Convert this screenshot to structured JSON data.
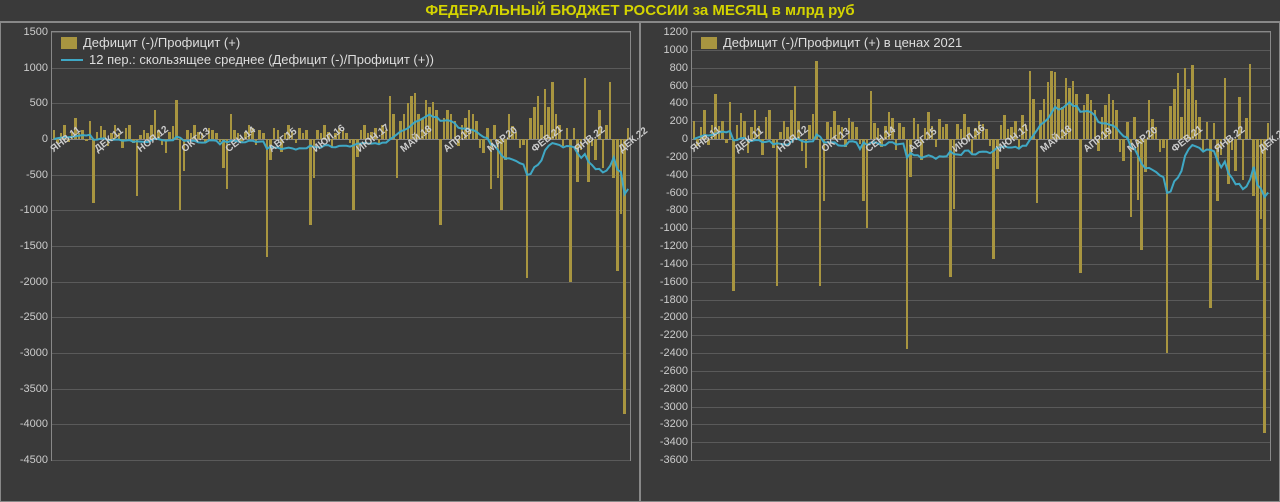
{
  "title": "ФЕДЕРАЛЬНЫЙ БЮДЖЕТ РОССИИ за МЕСЯЦ в млрд руб",
  "colors": {
    "background": "#3a3a3a",
    "title": "#d4d400",
    "axis_text": "#cccccc",
    "grid": "#5a5a5a",
    "border": "#888888",
    "bar": "#a89540",
    "line": "#3fa8c5"
  },
  "chart_left": {
    "legend_bar": "Дефицит (-)/Профицит (+)",
    "legend_line": "12 пер.: скользящее среднее (Дефицит (-)/Профицит (+))",
    "ylim": [
      -4500,
      1500
    ],
    "ytick_step": 500,
    "x_labels": [
      "ЯНВ.11",
      "ДЕК.11",
      "НОЯ.12",
      "ОКТ.13",
      "СЕН.14",
      "АВГ.15",
      "ИЮЛ.16",
      "ИЮН.17",
      "МАЙ.18",
      "АПР.19",
      "МАР.20",
      "ФЕВ.21",
      "ЯНВ.22",
      "ДЕК.22"
    ],
    "bars": [
      120,
      -50,
      80,
      200,
      -40,
      100,
      300,
      90,
      120,
      -30,
      250,
      -900,
      100,
      180,
      120,
      -100,
      80,
      200,
      90,
      -120,
      150,
      200,
      -60,
      -800,
      50,
      120,
      80,
      200,
      400,
      120,
      -80,
      -200,
      100,
      180,
      550,
      -1000,
      -450,
      120,
      80,
      200,
      100,
      90,
      -60,
      150,
      120,
      80,
      -40,
      -400,
      -700,
      350,
      120,
      80,
      -60,
      100,
      200,
      150,
      -80,
      120,
      90,
      -1650,
      -300,
      160,
      120,
      -180,
      80,
      200,
      100,
      -60,
      150,
      90,
      120,
      -1200,
      -550,
      120,
      80,
      200,
      100,
      -130,
      90,
      150,
      120,
      80,
      -60,
      -1000,
      -250,
      120,
      200,
      80,
      100,
      150,
      -80,
      200,
      120,
      600,
      350,
      -550,
      250,
      350,
      500,
      600,
      650,
      350,
      280,
      550,
      450,
      520,
      400,
      -1200,
      300,
      400,
      350,
      250,
      -100,
      200,
      300,
      400,
      350,
      250,
      -120,
      -200,
      150,
      -700,
      200,
      -550,
      -1000,
      -300,
      350,
      180,
      100,
      -120,
      -80,
      -1950,
      300,
      450,
      600,
      200,
      700,
      450,
      800,
      350,
      200,
      -100,
      150,
      -2000,
      150,
      -600,
      -150,
      850,
      -600,
      -100,
      -300,
      400,
      -400,
      200,
      800,
      -550,
      -1850,
      -1050,
      -3850,
      150
    ],
    "line": [
      0,
      10,
      20,
      30,
      25,
      30,
      40,
      48,
      55,
      50,
      60,
      -10,
      -8,
      5,
      8,
      -15,
      -15,
      -8,
      -8,
      -24,
      -21,
      -15,
      -40,
      -32,
      -36,
      -41,
      -44,
      -20,
      5,
      -2,
      -16,
      -23,
      -19,
      -17,
      33,
      17,
      -25,
      -25,
      -25,
      -25,
      -48,
      -50,
      -49,
      -19,
      -17,
      -25,
      -75,
      -25,
      -46,
      -27,
      -24,
      -33,
      -47,
      -46,
      -24,
      -24,
      -41,
      -37,
      -34,
      -138,
      -105,
      -121,
      -121,
      -142,
      -131,
      -122,
      -131,
      -148,
      -129,
      -131,
      -129,
      -92,
      -113,
      -116,
      -119,
      -88,
      -86,
      -114,
      -115,
      -97,
      -94,
      -95,
      -106,
      -89,
      -64,
      -64,
      -54,
      -64,
      -64,
      -58,
      -72,
      -50,
      -50,
      -7,
      28,
      66,
      107,
      126,
      151,
      194,
      240,
      256,
      286,
      315,
      343,
      308,
      308,
      254,
      258,
      262,
      250,
      221,
      158,
      146,
      147,
      134,
      126,
      103,
      60,
      25,
      13,
      -79,
      -91,
      -158,
      -233,
      -274,
      -270,
      -289,
      -309,
      -340,
      -357,
      -503,
      -491,
      -395,
      -362,
      -299,
      -157,
      -94,
      -57,
      -70,
      -84,
      -118,
      -98,
      -102,
      -115,
      -203,
      -265,
      -211,
      -320,
      -365,
      -423,
      -419,
      -469,
      -443,
      -377,
      -260,
      -428,
      -465,
      -773,
      -700
    ]
  },
  "chart_right": {
    "legend_bar": "Дефицит (-)/Профицит (+) в ценах 2021",
    "ylim": [
      -3600,
      1200
    ],
    "ytick_step": 200,
    "x_labels": [
      "ЯНВ.11",
      "ДЕК.11",
      "НОЯ.12",
      "ОКТ.13",
      "СЕН.14",
      "АВГ.15",
      "ИЮЛ.16",
      "ИЮН.17",
      "МАЙ.18",
      "АПР.19",
      "МАР.20",
      "ФЕВ.21",
      "ЯНВ.22",
      "ДЕК.22"
    ],
    "bars": [
      200,
      -80,
      130,
      330,
      -70,
      160,
      500,
      150,
      200,
      -50,
      420,
      -1700,
      160,
      290,
      200,
      -160,
      130,
      330,
      150,
      -180,
      250,
      330,
      -100,
      -1650,
      80,
      200,
      130,
      330,
      600,
      200,
      -130,
      -320,
      160,
      280,
      880,
      -1650,
      -700,
      190,
      130,
      310,
      160,
      140,
      -90,
      230,
      190,
      130,
      -60,
      -700,
      -1000,
      540,
      180,
      120,
      -90,
      150,
      300,
      230,
      -120,
      180,
      140,
      -2350,
      -430,
      230,
      170,
      -240,
      120,
      300,
      150,
      -90,
      220,
      130,
      170,
      -1550,
      -780,
      170,
      110,
      280,
      140,
      -170,
      120,
      200,
      170,
      110,
      -80,
      -1350,
      -340,
      160,
      270,
      110,
      140,
      200,
      -100,
      270,
      160,
      760,
      450,
      -720,
      320,
      450,
      640,
      760,
      750,
      450,
      360,
      680,
      570,
      650,
      500,
      -1500,
      380,
      500,
      440,
      320,
      -130,
      250,
      380,
      500,
      440,
      320,
      -150,
      -250,
      190,
      -880,
      250,
      -680,
      -1250,
      -370,
      440,
      220,
      130,
      -150,
      -100,
      -2400,
      370,
      560,
      740,
      250,
      800,
      560,
      830,
      440,
      250,
      -130,
      190,
      -1900,
      180,
      -700,
      -180,
      680,
      -500,
      -120,
      -360,
      470,
      -460,
      230,
      840,
      -640,
      -1580,
      -900,
      -3300,
      180
    ],
    "line": [
      0,
      15,
      30,
      45,
      38,
      45,
      60,
      72,
      82,
      75,
      90,
      -15,
      -12,
      8,
      12,
      -22,
      -22,
      -12,
      -12,
      -36,
      -32,
      -22,
      -60,
      -48,
      -54,
      -62,
      -66,
      -30,
      8,
      -3,
      -24,
      -35,
      -28,
      -26,
      50,
      26,
      -38,
      -38,
      -38,
      -38,
      -72,
      -75,
      -74,
      -28,
      -26,
      -38,
      -112,
      -38,
      -69,
      -41,
      -36,
      -50,
      -71,
      -69,
      -36,
      -36,
      -62,
      -56,
      -51,
      -207,
      -158,
      -182,
      -182,
      -213,
      -197,
      -183,
      -197,
      -222,
      -194,
      -197,
      -194,
      -138,
      -170,
      -174,
      -179,
      -132,
      -129,
      -171,
      -173,
      -146,
      -141,
      -143,
      -159,
      -134,
      -96,
      -96,
      -81,
      -96,
      -96,
      -87,
      -108,
      -75,
      -75,
      -11,
      42,
      99,
      161,
      189,
      227,
      291,
      360,
      330,
      343,
      378,
      411,
      370,
      370,
      305,
      310,
      314,
      300,
      265,
      190,
      175,
      176,
      161,
      151,
      124,
      72,
      30,
      16,
      -95,
      -109,
      -190,
      -280,
      -329,
      -324,
      -347,
      -371,
      -408,
      -428,
      -604,
      -589,
      -474,
      -434,
      -359,
      -188,
      -113,
      -68,
      -84,
      -101,
      -142,
      -118,
      -122,
      -138,
      -244,
      -318,
      -253,
      -384,
      -438,
      -508,
      -503,
      -563,
      -532,
      -452,
      -312,
      -514,
      -558,
      -650,
      -600
    ]
  }
}
